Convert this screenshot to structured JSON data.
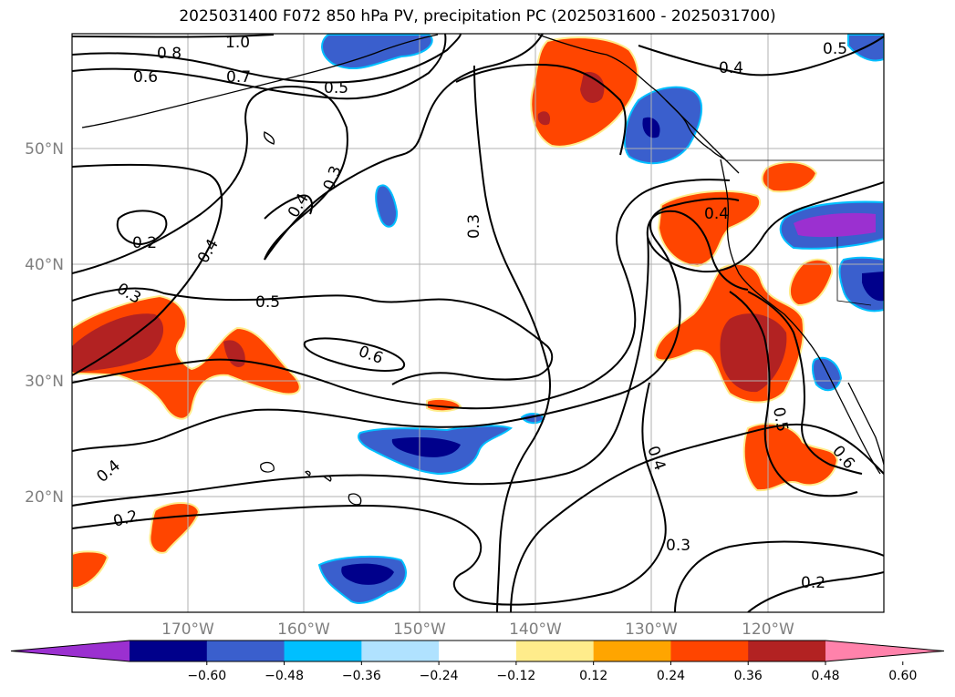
{
  "title": "2025031400 F072 850 hPa PV, precipitation PC (2025031600 - 2025031700)",
  "map": {
    "lat_labels": [
      "50°N",
      "40°N",
      "30°N",
      "20°N"
    ],
    "lon_labels": [
      "170°W",
      "160°W",
      "150°W",
      "140°W",
      "130°W",
      "120°W"
    ],
    "lon_range": [
      -180,
      -110
    ],
    "lat_range": [
      10,
      60
    ]
  },
  "colorbar": {
    "ticks": [
      "−0.60",
      "−0.48",
      "−0.36",
      "−0.24",
      "−0.12",
      "0.12",
      "0.24",
      "0.36",
      "0.48",
      "0.60"
    ],
    "colors": [
      "#9b30d0",
      "#00008b",
      "#3a5fcd",
      "#00bfff",
      "#b0e2ff",
      "#ffffff",
      "#ffec8b",
      "#ffa500",
      "#ff4500",
      "#b22222",
      "#ff82ab"
    ]
  },
  "contours": {
    "labels": [
      "1.0",
      "0.8",
      "0.6",
      "0.7",
      "0.5",
      "0.4",
      "0.3",
      "0.3",
      "0.2",
      "0.4",
      "0.4",
      "0.3",
      "0.5",
      "0.6",
      "0.4",
      "0.4",
      "0.2",
      "0.4",
      "0.5",
      "0.6",
      "0.3",
      "0.2",
      "0.5"
    ]
  },
  "palette": {
    "fill_dark_blue": "#00008b",
    "fill_blue": "#3a5fcd",
    "fill_light_blue": "#00bfff",
    "fill_purple": "#9b30d0",
    "fill_orange": "#ff4500",
    "fill_dark_red": "#b22222",
    "fill_yellow_edge": "#ffec8b"
  }
}
